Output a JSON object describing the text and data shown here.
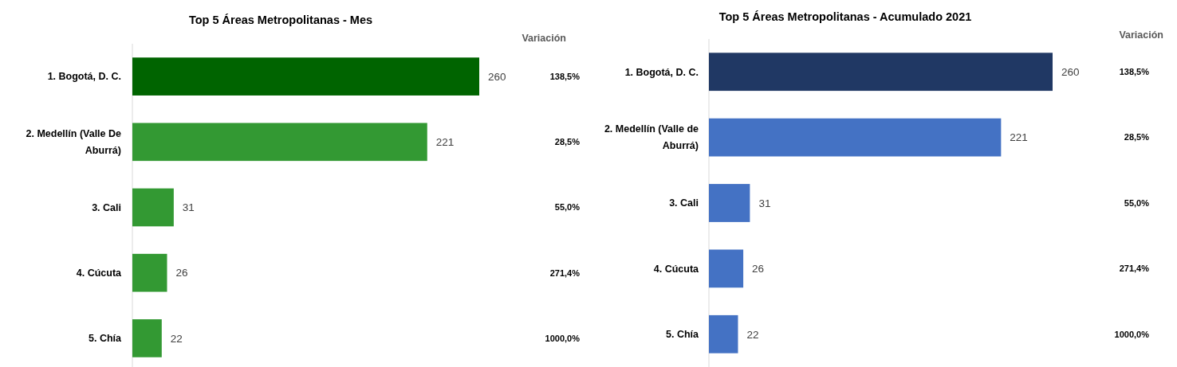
{
  "chart_data": [
    {
      "type": "bar",
      "orientation": "horizontal",
      "title": "Top 5 Áreas Metropolitanas - Mes",
      "categories": [
        "1. Bogotá, D. C.",
        "2. Medellín (Valle De Aburrá)",
        "3. Cali",
        "4. Cúcuta",
        "5. Chía"
      ],
      "values": [
        260,
        221,
        31,
        26,
        22
      ],
      "colors": [
        "#006400",
        "#339933",
        "#339933",
        "#339933",
        "#339933"
      ],
      "data_labels": true,
      "tick_labels": "y",
      "annotations": [
        "Variación",
        "138,5%",
        "28,5%",
        "55,0%",
        "271,4%",
        "1000,0%"
      ]
    },
    {
      "type": "bar",
      "orientation": "horizontal",
      "title": "Top 5 Áreas Metropolitanas - Acumulado 2021",
      "categories": [
        "1. Bogotá, D. C.",
        "2. Medellín (Valle de Aburrá)",
        "3. Cali",
        "4. Cúcuta",
        "5. Chía"
      ],
      "values": [
        260,
        221,
        31,
        26,
        22
      ],
      "colors": [
        "#203864",
        "#4472c4",
        "#4472c4",
        "#4472c4",
        "#4472c4"
      ],
      "data_labels": true,
      "tick_labels": "y",
      "annotations": [
        "Variación",
        "138,5%",
        "28,5%",
        "55,0%",
        "271,4%",
        "1000,0%"
      ]
    }
  ]
}
